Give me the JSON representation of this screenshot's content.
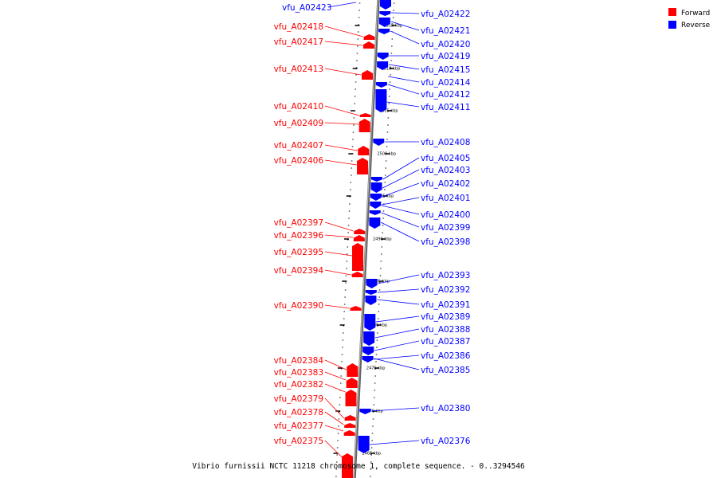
{
  "caption": "Vibrio furnissii NCTC 11218 chromosome 1, complete sequence. - 0..3294546",
  "legend": [
    {
      "label": "Forward",
      "color": "#ff0000"
    },
    {
      "label": "Reverse",
      "color": "#0000ff"
    }
  ],
  "colors": {
    "forward": "#ff0000",
    "reverse": "#0000ff",
    "backbone": "#888888"
  },
  "ticks": [
    "2515 kbp",
    "2510 kbp",
    "2505 kbp",
    "2500 kbp",
    "2495 kbp",
    "2490 kbp",
    "2485 kbp",
    "2480 kbp",
    "2475 kbp",
    "2470 kbp",
    "2465 kbp"
  ],
  "forward_labels": [
    "vfu_A02418",
    "vfu_A02417",
    "vfu_A02413",
    "vfu_A02410",
    "vfu_A02409",
    "vfu_A02407",
    "vfu_A02406",
    "vfu_A02397",
    "vfu_A02396",
    "vfu_A02395",
    "vfu_A02394",
    "vfu_A02390",
    "vfu_A02384",
    "vfu_A02383",
    "vfu_A02382",
    "vfu_A02379",
    "vfu_A02378",
    "vfu_A02377",
    "vfu_A02375"
  ],
  "reverse_labels": [
    "vfu_A02423",
    "vfu_A02422",
    "vfu_A02421",
    "vfu_A02420",
    "vfu_A02419",
    "vfu_A02415",
    "vfu_A02414",
    "vfu_A02412",
    "vfu_A02411",
    "vfu_A02408",
    "vfu_A02405",
    "vfu_A02403",
    "vfu_A02402",
    "vfu_A02401",
    "vfu_A02400",
    "vfu_A02399",
    "vfu_A02398",
    "vfu_A02393",
    "vfu_A02392",
    "vfu_A02391",
    "vfu_A02389",
    "vfu_A02388",
    "vfu_A02387",
    "vfu_A02386",
    "vfu_A02385",
    "vfu_A02380",
    "vfu_A02376"
  ]
}
